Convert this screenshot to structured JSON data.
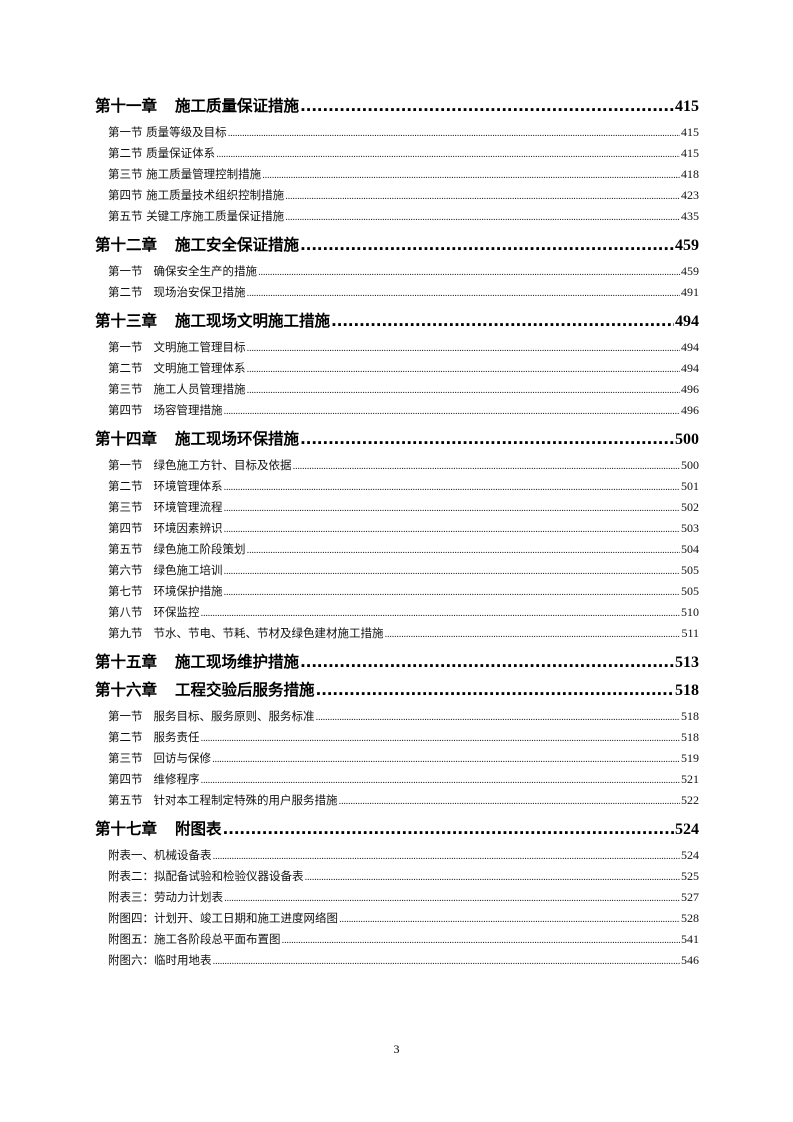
{
  "toc": [
    {
      "type": "chapter",
      "label": "第十一章",
      "title": "施工质量保证措施",
      "page": "415"
    },
    {
      "type": "section",
      "label": "第一节",
      "title": "质量等级及目标",
      "page": "415"
    },
    {
      "type": "section",
      "label": "第二节",
      "title": "质量保证体系",
      "page": "415"
    },
    {
      "type": "section",
      "label": "第三节",
      "title": "施工质量管理控制措施",
      "page": "418"
    },
    {
      "type": "section",
      "label": "第四节",
      "title": "施工质量技术组织控制措施",
      "page": "423"
    },
    {
      "type": "section",
      "label": "第五节",
      "title": "关键工序施工质量保证措施",
      "page": "435"
    },
    {
      "type": "chapter",
      "label": "第十二章",
      "title": "施工安全保证措施",
      "page": "459"
    },
    {
      "type": "section",
      "label": "第一节",
      "title": "确保安全生产的措施",
      "page": "459"
    },
    {
      "type": "section",
      "label": "第二节",
      "title": "现场治安保卫措施",
      "page": "491"
    },
    {
      "type": "chapter",
      "label": "第十三章",
      "title": "施工现场文明施工措施",
      "page": "494"
    },
    {
      "type": "section",
      "label": "第一节",
      "title": "文明施工管理目标",
      "page": "494"
    },
    {
      "type": "section",
      "label": "第二节",
      "title": "文明施工管理体系",
      "page": "494"
    },
    {
      "type": "section",
      "label": "第三节",
      "title": "施工人员管理措施",
      "page": "496"
    },
    {
      "type": "section",
      "label": "第四节",
      "title": "场容管理措施",
      "page": "496"
    },
    {
      "type": "chapter",
      "label": "第十四章",
      "title": "施工现场环保措施",
      "page": "500"
    },
    {
      "type": "section",
      "label": "第一节",
      "title": "绿色施工方针、目标及依据",
      "page": "500"
    },
    {
      "type": "section",
      "label": "第二节",
      "title": "环境管理体系",
      "page": "501"
    },
    {
      "type": "section",
      "label": "第三节",
      "title": "环境管理流程",
      "page": "502"
    },
    {
      "type": "section",
      "label": "第四节",
      "title": "环境因素辨识",
      "page": "503"
    },
    {
      "type": "section",
      "label": "第五节",
      "title": "绿色施工阶段策划",
      "page": "504"
    },
    {
      "type": "section",
      "label": "第六节",
      "title": "绿色施工培训",
      "page": "505"
    },
    {
      "type": "section",
      "label": "第七节",
      "title": "环境保护措施",
      "page": "505"
    },
    {
      "type": "section",
      "label": "第八节",
      "title": "环保监控",
      "page": "510"
    },
    {
      "type": "section",
      "label": "第九节",
      "title": "节水、节电、节耗、节材及绿色建材施工措施",
      "page": "511"
    },
    {
      "type": "chapter",
      "label": "第十五章",
      "title": "施工现场维护措施",
      "page": "513"
    },
    {
      "type": "chapter",
      "label": "第十六章",
      "title": "工程交验后服务措施",
      "page": "518"
    },
    {
      "type": "section",
      "label": "第一节",
      "title": "服务目标、服务原则、服务标准",
      "page": "518"
    },
    {
      "type": "section",
      "label": "第二节",
      "title": "服务责任",
      "page": "518"
    },
    {
      "type": "section",
      "label": "第三节",
      "title": "回访与保修",
      "page": "519"
    },
    {
      "type": "section",
      "label": "第四节",
      "title": "维修程序",
      "page": "521"
    },
    {
      "type": "section",
      "label": "第五节",
      "title": "针对本工程制定特殊的用户服务措施",
      "page": "522"
    },
    {
      "type": "chapter",
      "label": "第十七章",
      "title": "附图表",
      "page": "524"
    },
    {
      "type": "section",
      "label": "",
      "title": "附表一、机械设备表",
      "page": "524"
    },
    {
      "type": "section",
      "label": "",
      "title": "附表二：拟配备试验和检验仪器设备表",
      "page": "525"
    },
    {
      "type": "section",
      "label": "",
      "title": "附表三：劳动力计划表",
      "page": "527"
    },
    {
      "type": "section",
      "label": "",
      "title": "附图四：计划开、竣工日期和施工进度网络图",
      "page": "528"
    },
    {
      "type": "section",
      "label": "",
      "title": "附图五：施工各阶段总平面布置图",
      "page": "541"
    },
    {
      "type": "section",
      "label": "",
      "title": "附图六：临时用地表",
      "page": "546"
    }
  ],
  "page_number": "3"
}
